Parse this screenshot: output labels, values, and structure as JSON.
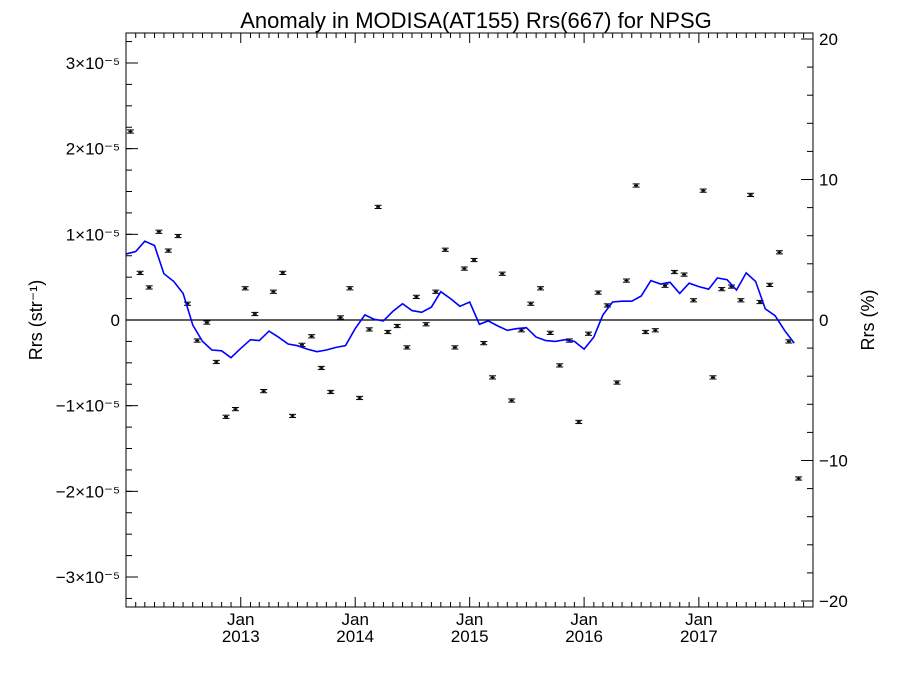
{
  "chart_data": {
    "type": "scatter",
    "title": "Anomaly in MODISA(AT155) Rrs(667) for NPSG",
    "ylabel_left": "Rrs (str⁻¹)",
    "ylabel_right": "Rrs (%)",
    "xlabel": "",
    "x_ticks": [
      {
        "month": "Jan",
        "year": "2013",
        "date": "2013-01-01"
      },
      {
        "month": "Jan",
        "year": "2014",
        "date": "2014-01-01"
      },
      {
        "month": "Jan",
        "year": "2015",
        "date": "2015-01-01"
      },
      {
        "month": "Jan",
        "year": "2016",
        "date": "2016-01-01"
      },
      {
        "month": "Jan",
        "year": "2017",
        "date": "2017-01-01"
      }
    ],
    "y_left_ticks": [
      "3×10⁻⁵",
      "2×10⁻⁵",
      "1×10⁻⁵",
      "0",
      "−1×10⁻⁵",
      "−2×10⁻⁵",
      "−3×10⁻⁵"
    ],
    "y_left_values": [
      3e-05,
      2e-05,
      1e-05,
      0,
      -1e-05,
      -2e-05,
      -3e-05
    ],
    "y_right_ticks": [
      "20",
      "10",
      "0",
      "−10",
      "−20"
    ],
    "y_right_values": [
      20,
      10,
      0,
      -10,
      -20
    ],
    "ylim_left": [
      -3.35e-05,
      3.35e-05
    ],
    "xlim": [
      "2012-01-01",
      "2017-12-31"
    ],
    "zero_line": true,
    "series": [
      {
        "kind": "monthly_points_with_errorbars",
        "color": "#000000",
        "points": [
          [
            "2012-01-15",
            2.2e-05
          ],
          [
            "2012-02-15",
            5.5e-06
          ],
          [
            "2012-03-15",
            3.8e-06
          ],
          [
            "2012-04-15",
            1.03e-05
          ],
          [
            "2012-05-15",
            8.1e-06
          ],
          [
            "2012-06-15",
            9.8e-06
          ],
          [
            "2012-07-15",
            1.9e-06
          ],
          [
            "2012-08-15",
            -2.4e-06
          ],
          [
            "2012-09-15",
            -3e-07
          ],
          [
            "2012-10-15",
            -4.9e-06
          ],
          [
            "2012-11-15",
            -1.13e-05
          ],
          [
            "2012-12-15",
            -1.04e-05
          ],
          [
            "2013-01-15",
            3.7e-06
          ],
          [
            "2013-02-15",
            7e-07
          ],
          [
            "2013-03-15",
            -8.3e-06
          ],
          [
            "2013-04-15",
            3.3e-06
          ],
          [
            "2013-05-15",
            5.5e-06
          ],
          [
            "2013-06-15",
            -1.12e-05
          ],
          [
            "2013-07-15",
            -2.9e-06
          ],
          [
            "2013-08-15",
            -1.9e-06
          ],
          [
            "2013-09-15",
            -5.6e-06
          ],
          [
            "2013-10-15",
            -8.4e-06
          ],
          [
            "2013-11-15",
            3e-07
          ],
          [
            "2013-12-15",
            3.7e-06
          ],
          [
            "2014-01-15",
            -9.1e-06
          ],
          [
            "2014-02-15",
            -1.1e-06
          ],
          [
            "2014-03-15",
            1.32e-05
          ],
          [
            "2014-04-15",
            -1.4e-06
          ],
          [
            "2014-05-15",
            -7e-07
          ],
          [
            "2014-06-15",
            -3.2e-06
          ],
          [
            "2014-07-15",
            2.7e-06
          ],
          [
            "2014-08-15",
            -5e-07
          ],
          [
            "2014-09-15",
            3.3e-06
          ],
          [
            "2014-10-15",
            8.2e-06
          ],
          [
            "2014-11-15",
            -3.2e-06
          ],
          [
            "2014-12-15",
            6e-06
          ],
          [
            "2015-01-15",
            7e-06
          ],
          [
            "2015-02-15",
            -2.7e-06
          ],
          [
            "2015-03-15",
            -6.7e-06
          ],
          [
            "2015-04-15",
            5.4e-06
          ],
          [
            "2015-05-15",
            -9.4e-06
          ],
          [
            "2015-06-15",
            -1.2e-06
          ],
          [
            "2015-07-15",
            1.9e-06
          ],
          [
            "2015-08-15",
            3.7e-06
          ],
          [
            "2015-09-15",
            -1.5e-06
          ],
          [
            "2015-10-15",
            -5.3e-06
          ],
          [
            "2015-11-15",
            -2.4e-06
          ],
          [
            "2015-12-15",
            -1.19e-05
          ],
          [
            "2016-01-15",
            -1.6e-06
          ],
          [
            "2016-02-15",
            3.2e-06
          ],
          [
            "2016-03-15",
            1.7e-06
          ],
          [
            "2016-04-15",
            -7.3e-06
          ],
          [
            "2016-05-15",
            4.6e-06
          ],
          [
            "2016-06-15",
            1.57e-05
          ],
          [
            "2016-07-15",
            -1.4e-06
          ],
          [
            "2016-08-15",
            -1.2e-06
          ],
          [
            "2016-09-15",
            4e-06
          ],
          [
            "2016-10-15",
            5.6e-06
          ],
          [
            "2016-11-15",
            5.3e-06
          ],
          [
            "2016-12-15",
            2.3e-06
          ],
          [
            "2017-01-15",
            1.51e-05
          ],
          [
            "2017-02-15",
            -6.7e-06
          ],
          [
            "2017-03-15",
            3.6e-06
          ],
          [
            "2017-04-15",
            3.9e-06
          ],
          [
            "2017-05-15",
            2.3e-06
          ],
          [
            "2017-06-15",
            1.46e-05
          ],
          [
            "2017-07-15",
            2.1e-06
          ],
          [
            "2017-08-15",
            4.1e-06
          ],
          [
            "2017-09-15",
            7.9e-06
          ],
          [
            "2017-10-15",
            -2.5e-06
          ],
          [
            "2017-11-15",
            -1.85e-05
          ]
        ]
      },
      {
        "kind": "smoothed_line",
        "color": "#0000ff",
        "points": [
          [
            "2012-01-01",
            7.7e-06
          ],
          [
            "2012-02-01",
            8e-06
          ],
          [
            "2012-03-01",
            9.2e-06
          ],
          [
            "2012-04-01",
            8.7e-06
          ],
          [
            "2012-05-01",
            5.4e-06
          ],
          [
            "2012-06-01",
            4.5e-06
          ],
          [
            "2012-07-01",
            3.1e-06
          ],
          [
            "2012-08-01",
            -6e-07
          ],
          [
            "2012-09-01",
            -2.5e-06
          ],
          [
            "2012-10-01",
            -3.5e-06
          ],
          [
            "2012-11-01",
            -3.6e-06
          ],
          [
            "2012-12-01",
            -4.4e-06
          ],
          [
            "2013-01-01",
            -3.3e-06
          ],
          [
            "2013-02-01",
            -2.3e-06
          ],
          [
            "2013-03-01",
            -2.4e-06
          ],
          [
            "2013-04-01",
            -1.3e-06
          ],
          [
            "2013-05-01",
            -2e-06
          ],
          [
            "2013-06-01",
            -2.8e-06
          ],
          [
            "2013-07-01",
            -3e-06
          ],
          [
            "2013-08-01",
            -3.4e-06
          ],
          [
            "2013-09-01",
            -3.7e-06
          ],
          [
            "2013-10-01",
            -3.5e-06
          ],
          [
            "2013-11-01",
            -3.2e-06
          ],
          [
            "2013-12-01",
            -3e-06
          ],
          [
            "2014-01-01",
            -1e-06
          ],
          [
            "2014-02-01",
            6e-07
          ],
          [
            "2014-03-01",
            1e-07
          ],
          [
            "2014-04-01",
            -1e-07
          ],
          [
            "2014-05-01",
            1e-06
          ],
          [
            "2014-06-01",
            1.9e-06
          ],
          [
            "2014-07-01",
            1.1e-06
          ],
          [
            "2014-08-01",
            9e-07
          ],
          [
            "2014-09-01",
            1.5e-06
          ],
          [
            "2014-10-01",
            3.3e-06
          ],
          [
            "2014-11-01",
            2.5e-06
          ],
          [
            "2014-12-01",
            1.6e-06
          ],
          [
            "2015-01-01",
            2.1e-06
          ],
          [
            "2015-02-01",
            -5e-07
          ],
          [
            "2015-03-01",
            -1e-07
          ],
          [
            "2015-04-01",
            -7e-07
          ],
          [
            "2015-05-01",
            -1.2e-06
          ],
          [
            "2015-06-01",
            -1e-06
          ],
          [
            "2015-07-01",
            -9e-07
          ],
          [
            "2015-08-01",
            -2e-06
          ],
          [
            "2015-09-01",
            -2.4e-06
          ],
          [
            "2015-10-01",
            -2.5e-06
          ],
          [
            "2015-11-01",
            -2.3e-06
          ],
          [
            "2015-12-01",
            -2.5e-06
          ],
          [
            "2016-01-01",
            -3.4e-06
          ],
          [
            "2016-02-01",
            -2e-06
          ],
          [
            "2016-03-01",
            6e-07
          ],
          [
            "2016-04-01",
            2.1e-06
          ],
          [
            "2016-05-01",
            2.2e-06
          ],
          [
            "2016-06-01",
            2.2e-06
          ],
          [
            "2016-07-01",
            2.8e-06
          ],
          [
            "2016-08-01",
            4.6e-06
          ],
          [
            "2016-09-01",
            4.2e-06
          ],
          [
            "2016-10-01",
            4.4e-06
          ],
          [
            "2016-11-01",
            3.1e-06
          ],
          [
            "2016-12-01",
            4.3e-06
          ],
          [
            "2017-01-01",
            3.9e-06
          ],
          [
            "2017-02-01",
            3.6e-06
          ],
          [
            "2017-03-01",
            4.9e-06
          ],
          [
            "2017-04-01",
            4.7e-06
          ],
          [
            "2017-05-01",
            3.5e-06
          ],
          [
            "2017-06-01",
            5.5e-06
          ],
          [
            "2017-07-01",
            4.5e-06
          ],
          [
            "2017-08-01",
            1.3e-06
          ],
          [
            "2017-09-01",
            5e-07
          ],
          [
            "2017-10-01",
            -1.2e-06
          ],
          [
            "2017-11-01",
            -2.7e-06
          ]
        ]
      }
    ],
    "grid": false,
    "legend": "none"
  }
}
